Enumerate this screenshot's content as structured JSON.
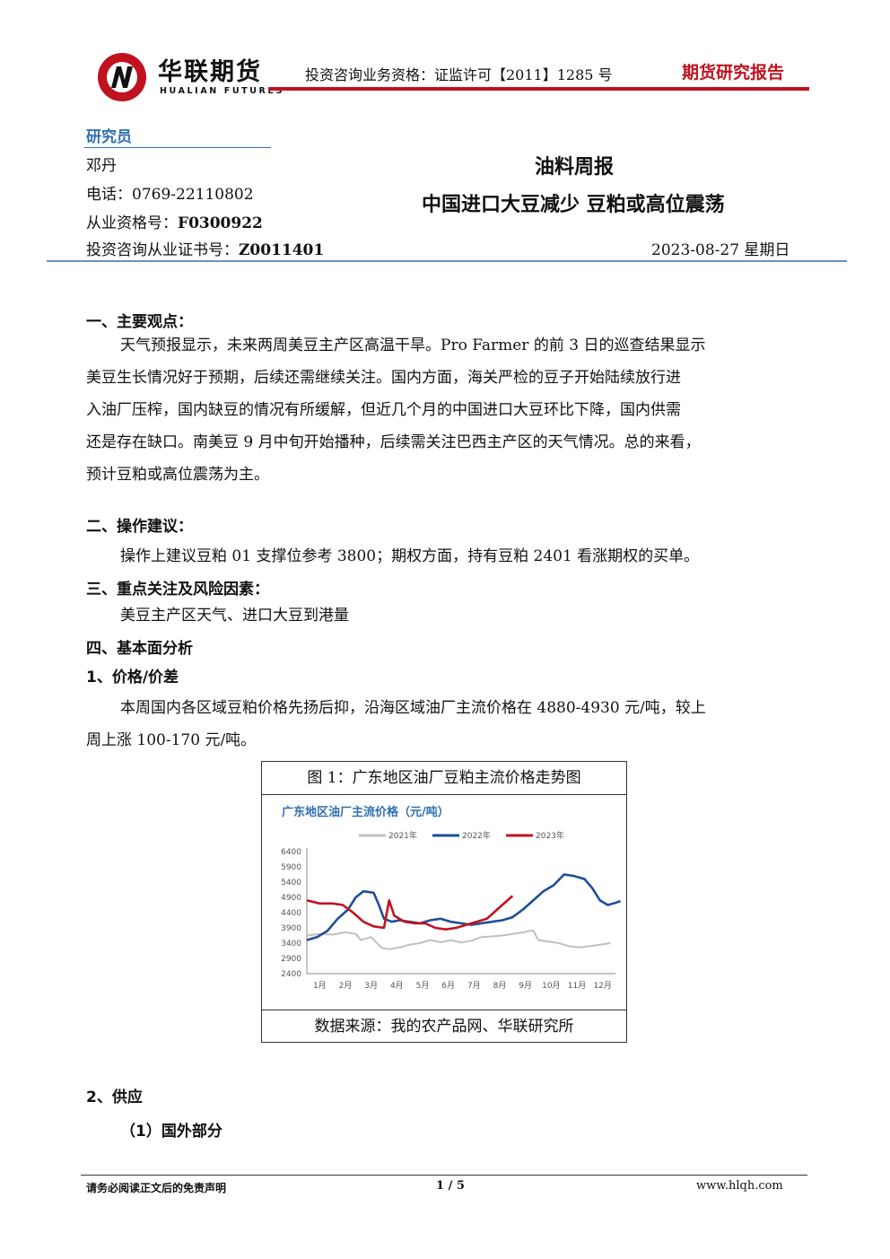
{
  "header": {
    "logo_cn": "华联期货",
    "logo_en": "HUALIAN FUTURES",
    "license": "投资咨询业务资格：证监许可【2011】1285 号",
    "report_category": "期货研究报告",
    "brand_color": "#c1121f"
  },
  "analyst": {
    "label": "研究员",
    "name": "邓丹",
    "phone": "电话：0769-22110802",
    "qual_label": "从业资格号：",
    "qual_value": "F0300922",
    "cert_label": "投资咨询从业证书号：",
    "cert_value": "Z0011401"
  },
  "report": {
    "type": "油料周报",
    "title": "中国进口大豆减少  豆粕或高位震荡",
    "date": "2023-08-27 星期日"
  },
  "sections": {
    "s1_head": "一、主要观点：",
    "s1_lines": [
      "天气预报显示，未来两周美豆主产区高温干旱。Pro Farmer 的前 3 日的巡查结果显示",
      "美豆生长情况好于预期，后续还需继续关注。国内方面，海关严检的豆子开始陆续放行进",
      "入油厂压榨，国内缺豆的情况有所缓解，但近几个月的中国进口大豆环比下降，国内供需",
      "还是存在缺口。南美豆 9 月中旬开始播种，后续需关注巴西主产区的天气情况。总的来看，",
      "预计豆粕或高位震荡为主。"
    ],
    "s2_head": "二、操作建议：",
    "s2_text": "操作上建议豆粕 01 支撑位参考 3800；期权方面，持有豆粕 2401 看涨期权的买单。",
    "s3_head": "三、重点关注及风险因素：",
    "s3_text": "美豆主产区天气、进口大豆到港量",
    "s4_head": "四、基本面分析",
    "s4_1_head": "1、价格/价差",
    "s4_1_lines": [
      "本周国内各区域豆粕价格先扬后抑，沿海区域油厂主流价格在 4880-4930 元/吨，较上",
      "周上涨 100-170 元/吨。"
    ],
    "s4_2_head": "2、供应",
    "s4_2_sub": "（1）国外部分"
  },
  "figure": {
    "caption": "图 1：广东地区油厂豆粕主流价格走势图",
    "source": "数据来源：我的农产品网、华联研究所"
  },
  "chart_data": {
    "type": "line",
    "title": "广东地区油厂主流价格（元/吨）",
    "x_ticks": [
      "1月",
      "2月",
      "3月",
      "4月",
      "5月",
      "6月",
      "7月",
      "8月",
      "9月",
      "10月",
      "11月",
      "12月"
    ],
    "y_ticks": [
      2400,
      2900,
      3400,
      3900,
      4400,
      4900,
      5400,
      5900,
      6400
    ],
    "ylim": [
      2400,
      6400
    ],
    "xlim": [
      1,
      13
    ],
    "grid": false,
    "legend_position": "top",
    "series": [
      {
        "name": "2021年",
        "color": "#c0c0c0",
        "points": [
          [
            1,
            3650
          ],
          [
            1.5,
            3700
          ],
          [
            2,
            3680
          ],
          [
            2.5,
            3760
          ],
          [
            2.9,
            3700
          ],
          [
            3.1,
            3500
          ],
          [
            3.5,
            3600
          ],
          [
            3.9,
            3250
          ],
          [
            4.2,
            3200
          ],
          [
            4.6,
            3260
          ],
          [
            5,
            3350
          ],
          [
            5.4,
            3400
          ],
          [
            5.8,
            3500
          ],
          [
            6.2,
            3430
          ],
          [
            6.6,
            3500
          ],
          [
            7,
            3420
          ],
          [
            7.4,
            3480
          ],
          [
            7.8,
            3600
          ],
          [
            8.2,
            3620
          ],
          [
            8.6,
            3650
          ],
          [
            9,
            3700
          ],
          [
            9.4,
            3750
          ],
          [
            9.8,
            3820
          ],
          [
            10,
            3500
          ],
          [
            10.4,
            3450
          ],
          [
            10.8,
            3400
          ],
          [
            11.2,
            3300
          ],
          [
            11.6,
            3260
          ],
          [
            12,
            3300
          ],
          [
            12.4,
            3350
          ],
          [
            12.8,
            3400
          ]
        ]
      },
      {
        "name": "2022年",
        "color": "#1f4e96",
        "points": [
          [
            1,
            3500
          ],
          [
            1.4,
            3600
          ],
          [
            1.8,
            3800
          ],
          [
            2.2,
            4200
          ],
          [
            2.6,
            4500
          ],
          [
            2.9,
            4900
          ],
          [
            3.2,
            5100
          ],
          [
            3.6,
            5050
          ],
          [
            3.8,
            4650
          ],
          [
            4,
            4200
          ],
          [
            4.3,
            4100
          ],
          [
            4.6,
            4150
          ],
          [
            5,
            4100
          ],
          [
            5.4,
            4050
          ],
          [
            5.8,
            4150
          ],
          [
            6.2,
            4200
          ],
          [
            6.6,
            4100
          ],
          [
            7,
            4050
          ],
          [
            7.4,
            4000
          ],
          [
            7.8,
            4050
          ],
          [
            8.2,
            4100
          ],
          [
            8.6,
            4150
          ],
          [
            9,
            4250
          ],
          [
            9.4,
            4500
          ],
          [
            9.8,
            4800
          ],
          [
            10.2,
            5100
          ],
          [
            10.6,
            5300
          ],
          [
            11,
            5650
          ],
          [
            11.4,
            5600
          ],
          [
            11.8,
            5500
          ],
          [
            12.1,
            5200
          ],
          [
            12.4,
            4800
          ],
          [
            12.7,
            4650
          ],
          [
            13,
            4720
          ],
          [
            13.2,
            4780
          ]
        ]
      },
      {
        "name": "2023年",
        "color": "#c1121f",
        "points": [
          [
            1,
            4800
          ],
          [
            1.5,
            4700
          ],
          [
            2,
            4700
          ],
          [
            2.4,
            4650
          ],
          [
            2.8,
            4400
          ],
          [
            3.2,
            4100
          ],
          [
            3.6,
            3950
          ],
          [
            4,
            3900
          ],
          [
            4.2,
            4800
          ],
          [
            4.4,
            4300
          ],
          [
            4.8,
            4100
          ],
          [
            5.2,
            4050
          ],
          [
            5.6,
            4050
          ],
          [
            6,
            3900
          ],
          [
            6.4,
            3850
          ],
          [
            6.8,
            3900
          ],
          [
            7.2,
            4000
          ],
          [
            7.6,
            4100
          ],
          [
            8,
            4200
          ],
          [
            8.4,
            4500
          ],
          [
            8.8,
            4800
          ],
          [
            9,
            4950
          ]
        ]
      }
    ]
  }
}
